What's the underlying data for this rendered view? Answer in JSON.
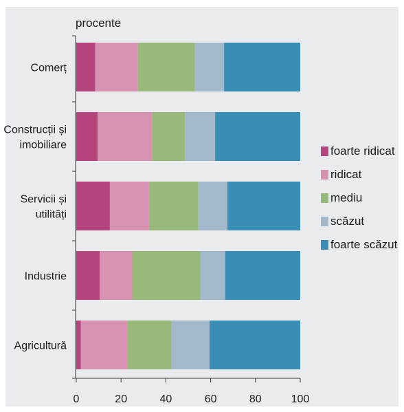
{
  "chart_data": {
    "type": "bar",
    "orientation": "horizontal",
    "stacked": true,
    "unit_label": "procente",
    "categories": [
      [
        "Comerț"
      ],
      [
        "Construcții și",
        "imobiliare"
      ],
      [
        "Servicii și",
        "utilități"
      ],
      [
        "Industrie"
      ],
      [
        "Agricultură"
      ]
    ],
    "series": [
      {
        "name": "foarte ridicat",
        "color": "#b5457c",
        "values": [
          8.5,
          9.5,
          15,
          10.5,
          2
        ]
      },
      {
        "name": "ridicat",
        "color": "#d792b2",
        "values": [
          19,
          24.5,
          17.5,
          14.5,
          21
        ]
      },
      {
        "name": "mediu",
        "color": "#98b97a",
        "values": [
          25.5,
          14.5,
          22,
          30.5,
          19.5
        ]
      },
      {
        "name": "scăzut",
        "color": "#a4b8cb",
        "values": [
          13,
          13.5,
          13,
          11,
          17
        ]
      },
      {
        "name": "foarte scăzut",
        "color": "#3a8db4",
        "values": [
          34,
          38,
          32.5,
          33.5,
          40.5
        ]
      }
    ],
    "x_ticks": [
      0,
      20,
      40,
      60,
      80,
      100
    ],
    "xlim": [
      0,
      100
    ],
    "legend_position": "right"
  }
}
